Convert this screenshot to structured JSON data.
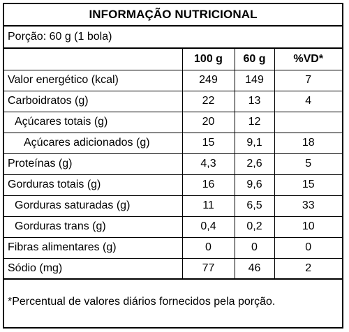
{
  "title": "INFORMAÇÃO NUTRICIONAL",
  "portion": "Porção: 60 g (1 bola)",
  "headers": {
    "label": "",
    "per_100g": "100 g",
    "per_60g": "60 g",
    "vd": "%VD*"
  },
  "rows": [
    {
      "label": "Valor energético (kcal)",
      "per_100g": "249",
      "per_60g": "149",
      "vd": "7"
    },
    {
      "label": "Carboidratos (g)",
      "per_100g": "22",
      "per_60g": "13",
      "vd": "4"
    },
    {
      "label": "Açúcares totais (g)",
      "per_100g": "20",
      "per_60g": "12",
      "vd": ""
    },
    {
      "label": "Açúcares adicionados (g)",
      "per_100g": "15",
      "per_60g": "9,1",
      "vd": "18"
    },
    {
      "label": "Proteínas (g)",
      "per_100g": "4,3",
      "per_60g": "2,6",
      "vd": "5"
    },
    {
      "label": "Gorduras totais (g)",
      "per_100g": "16",
      "per_60g": "9,6",
      "vd": "15"
    },
    {
      "label": "Gorduras saturadas (g)",
      "per_100g": "11",
      "per_60g": "6,5",
      "vd": "33"
    },
    {
      "label": "Gorduras trans (g)",
      "per_100g": "0,4",
      "per_60g": "0,2",
      "vd": "10"
    },
    {
      "label": "Fibras alimentares (g)",
      "per_100g": "0",
      "per_60g": "0",
      "vd": "0"
    },
    {
      "label": "Sódio (mg)",
      "per_100g": "77",
      "per_60g": "46",
      "vd": "2"
    }
  ],
  "footnote": "*Percentual de valores diários fornecidos pela porção."
}
